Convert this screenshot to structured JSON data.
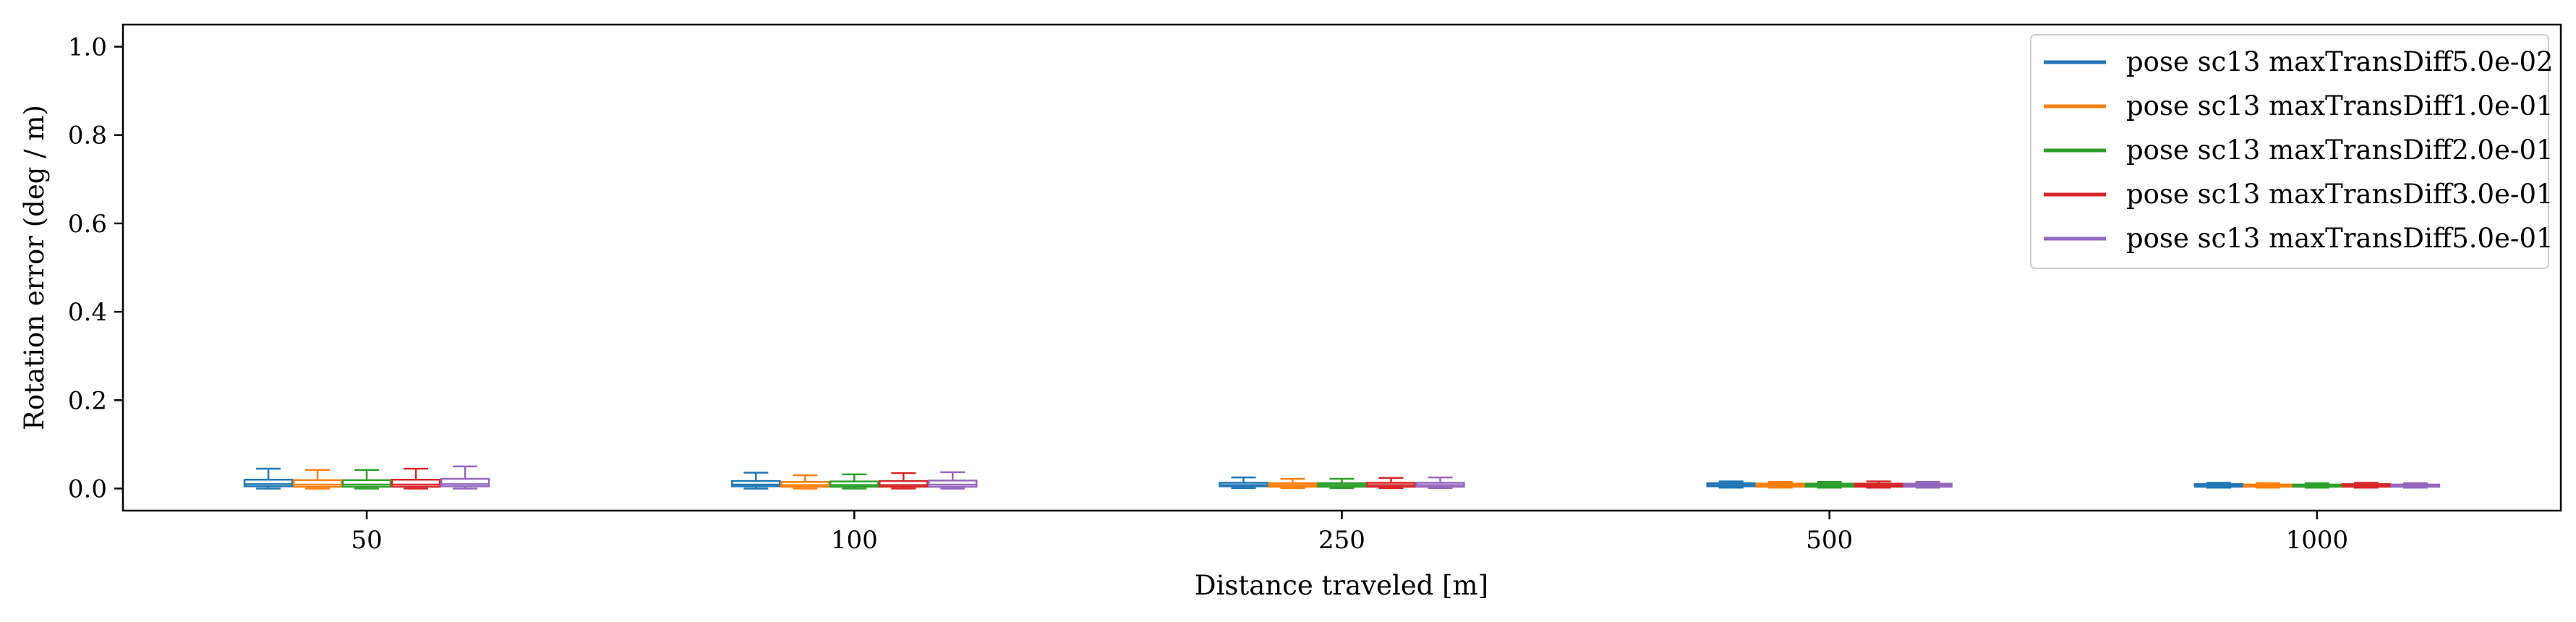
{
  "chart_data": {
    "type": "box",
    "categories": [
      "50",
      "100",
      "250",
      "500",
      "1000"
    ],
    "xlabel": "Distance traveled [m]",
    "ylabel": "Rotation error (deg / m)",
    "ylim": [
      -0.05,
      1.05
    ],
    "yticks": [
      "0.0",
      "0.2",
      "0.4",
      "0.6",
      "0.8",
      "1.0"
    ],
    "ytick_values": [
      0.0,
      0.2,
      0.4,
      0.6,
      0.8,
      1.0
    ],
    "grid": false,
    "legend_position": "top-right",
    "series": [
      {
        "name": "pose sc13 maxTransDiff5.0e-02",
        "color": "#1f77b4",
        "boxes": [
          {
            "whislo": 0.0,
            "q1": 0.005,
            "med": 0.01,
            "q3": 0.02,
            "whishi": 0.045
          },
          {
            "whislo": 0.0,
            "q1": 0.005,
            "med": 0.009,
            "q3": 0.017,
            "whishi": 0.036
          },
          {
            "whislo": 0.001,
            "q1": 0.005,
            "med": 0.008,
            "q3": 0.013,
            "whishi": 0.025
          },
          {
            "whislo": 0.002,
            "q1": 0.005,
            "med": 0.008,
            "q3": 0.012,
            "whishi": 0.016
          },
          {
            "whislo": 0.002,
            "q1": 0.004,
            "med": 0.007,
            "q3": 0.01,
            "whishi": 0.013
          }
        ]
      },
      {
        "name": "pose sc13 maxTransDiff1.0e-01",
        "color": "#ff7f0e",
        "boxes": [
          {
            "whislo": 0.0,
            "q1": 0.004,
            "med": 0.009,
            "q3": 0.019,
            "whishi": 0.042
          },
          {
            "whislo": 0.0,
            "q1": 0.004,
            "med": 0.008,
            "q3": 0.015,
            "whishi": 0.03
          },
          {
            "whislo": 0.001,
            "q1": 0.004,
            "med": 0.008,
            "q3": 0.012,
            "whishi": 0.022
          },
          {
            "whislo": 0.002,
            "q1": 0.004,
            "med": 0.007,
            "q3": 0.011,
            "whishi": 0.015
          },
          {
            "whislo": 0.002,
            "q1": 0.004,
            "med": 0.006,
            "q3": 0.009,
            "whishi": 0.012
          }
        ]
      },
      {
        "name": "pose sc13 maxTransDiff2.0e-01",
        "color": "#2ca02c",
        "boxes": [
          {
            "whislo": 0.0,
            "q1": 0.004,
            "med": 0.009,
            "q3": 0.019,
            "whishi": 0.042
          },
          {
            "whislo": 0.0,
            "q1": 0.004,
            "med": 0.008,
            "q3": 0.016,
            "whishi": 0.032
          },
          {
            "whislo": 0.001,
            "q1": 0.004,
            "med": 0.008,
            "q3": 0.012,
            "whishi": 0.022
          },
          {
            "whislo": 0.002,
            "q1": 0.004,
            "med": 0.007,
            "q3": 0.011,
            "whishi": 0.015
          },
          {
            "whislo": 0.002,
            "q1": 0.004,
            "med": 0.006,
            "q3": 0.009,
            "whishi": 0.012
          }
        ]
      },
      {
        "name": "pose sc13 maxTransDiff3.0e-01",
        "color": "#d62728",
        "boxes": [
          {
            "whislo": 0.0,
            "q1": 0.004,
            "med": 0.009,
            "q3": 0.02,
            "whishi": 0.045
          },
          {
            "whislo": 0.0,
            "q1": 0.004,
            "med": 0.008,
            "q3": 0.017,
            "whishi": 0.035
          },
          {
            "whislo": 0.001,
            "q1": 0.004,
            "med": 0.008,
            "q3": 0.013,
            "whishi": 0.024
          },
          {
            "whislo": 0.002,
            "q1": 0.004,
            "med": 0.007,
            "q3": 0.011,
            "whishi": 0.016
          },
          {
            "whislo": 0.002,
            "q1": 0.004,
            "med": 0.006,
            "q3": 0.01,
            "whishi": 0.013
          }
        ]
      },
      {
        "name": "pose sc13 maxTransDiff5.0e-01",
        "color": "#9467bd",
        "boxes": [
          {
            "whislo": 0.0,
            "q1": 0.005,
            "med": 0.01,
            "q3": 0.022,
            "whishi": 0.05
          },
          {
            "whislo": 0.0,
            "q1": 0.004,
            "med": 0.009,
            "q3": 0.018,
            "whishi": 0.037
          },
          {
            "whislo": 0.001,
            "q1": 0.004,
            "med": 0.008,
            "q3": 0.013,
            "whishi": 0.025
          },
          {
            "whislo": 0.002,
            "q1": 0.004,
            "med": 0.007,
            "q3": 0.011,
            "whishi": 0.015
          },
          {
            "whislo": 0.002,
            "q1": 0.004,
            "med": 0.006,
            "q3": 0.009,
            "whishi": 0.012
          }
        ]
      }
    ]
  }
}
